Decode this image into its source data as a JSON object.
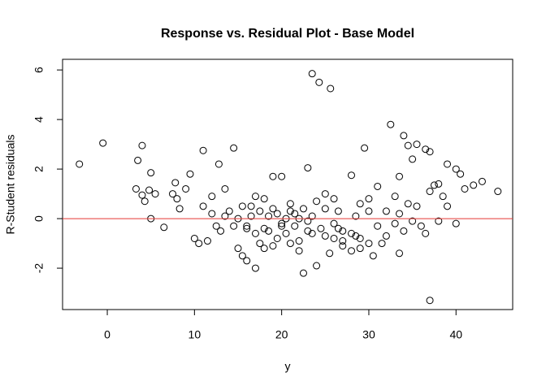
{
  "chart_data": {
    "type": "scatter",
    "title": "Response vs. Residual Plot - Base Model",
    "x_label": "y",
    "y_label": "R-Student residuals",
    "xlim": [
      -5.13,
      46.5
    ],
    "ylim": [
      -3.67,
      6.43
    ],
    "xticks": [
      0,
      10,
      20,
      30,
      40
    ],
    "yticks": [
      -2,
      0,
      2,
      4,
      6
    ],
    "hline": {
      "value": 0,
      "color": "#e53935"
    },
    "series": [
      {
        "color": "#000000",
        "x": [
          -3.2,
          -0.5,
          3.3,
          3.5,
          4,
          4.3,
          4,
          4.8,
          5,
          5,
          5.5,
          6.5,
          7.5,
          7.8,
          8,
          8.3,
          9,
          9.5,
          10,
          10.5,
          11,
          11.5,
          12,
          12.5,
          12.8,
          13.5,
          14.5,
          14,
          15,
          15.5,
          16,
          16.5,
          17,
          17.5,
          18,
          18.5,
          19,
          19.5,
          20,
          20.5,
          21,
          22,
          22.5,
          23,
          23.5,
          24.3,
          25.6,
          24,
          25,
          25.5,
          26,
          27,
          28,
          28.5,
          29,
          29.5,
          30,
          30.5,
          31,
          32,
          32.5,
          33,
          33.5,
          33.5,
          34,
          34.5,
          34.5,
          35,
          35.5,
          36,
          36.5,
          37,
          37,
          37,
          37.5,
          38,
          38.5,
          39,
          40,
          40.5,
          41,
          42,
          43,
          44.8,
          36.5,
          35,
          34,
          33,
          32,
          31,
          30,
          29,
          28,
          27,
          26.5,
          26,
          25,
          24.5,
          23.5,
          23,
          22.5,
          22,
          21.5,
          21,
          20.5,
          20,
          19.5,
          19,
          18.5,
          18,
          17.5,
          17,
          16.5,
          16,
          15.5,
          15,
          14.5,
          13.5,
          13,
          12,
          11,
          38,
          39,
          40,
          24,
          25,
          26,
          27,
          28,
          29,
          30,
          21,
          22,
          23,
          19,
          18,
          17,
          16,
          20,
          21.5,
          23.5,
          26.5,
          28.5,
          31.5,
          33.5,
          35.5
        ],
        "values": [
          2.2,
          3.05,
          1.2,
          2.35,
          2.95,
          0.7,
          0.95,
          1.15,
          1.85,
          0,
          1.0,
          -0.35,
          1.0,
          1.45,
          0.8,
          0.4,
          1.2,
          1.8,
          -0.8,
          -1.0,
          2.75,
          -0.9,
          0.2,
          -0.3,
          2.2,
          1.2,
          2.85,
          0.3,
          -1.2,
          -1.5,
          -1.7,
          0.5,
          -2.0,
          -1.0,
          0.8,
          -0.5,
          1.7,
          0.2,
          1.7,
          -0.6,
          -1.0,
          -1.3,
          -2.2,
          2.05,
          5.85,
          5.5,
          5.25,
          -1.9,
          1.0,
          -1.4,
          -0.8,
          -0.5,
          1.75,
          0.1,
          0.6,
          2.85,
          -1.0,
          -1.5,
          1.3,
          0.3,
          3.8,
          0.9,
          -1.4,
          1.7,
          3.35,
          2.95,
          0.6,
          2.4,
          3.0,
          -0.3,
          2.8,
          2.7,
          -3.3,
          1.1,
          1.35,
          1.4,
          0.9,
          2.2,
          2.0,
          1.8,
          1.2,
          1.35,
          1.5,
          1.1,
          -0.6,
          -0.1,
          -0.5,
          -0.2,
          -0.7,
          -0.3,
          0.3,
          -0.8,
          -1.3,
          -0.9,
          0.3,
          -0.2,
          0.4,
          -0.4,
          0.1,
          -0.5,
          0.4,
          0.0,
          -0.3,
          0.3,
          0.0,
          -0.3,
          -0.8,
          0.4,
          0.1,
          -0.4,
          0.3,
          -0.6,
          0.1,
          -0.3,
          0.5,
          0.0,
          -0.3,
          0.1,
          -0.5,
          0.9,
          0.5,
          -0.1,
          0.5,
          -0.2,
          0.7,
          -0.7,
          0.8,
          -1.1,
          -0.6,
          -1.2,
          0.8,
          0.6,
          -0.9,
          -0.1,
          -1.1,
          -1.2,
          0.9,
          -0.4,
          -0.2,
          0.2,
          -0.6,
          -0.4,
          -0.7,
          -1.0,
          0.2,
          0.5
        ]
      }
    ]
  }
}
